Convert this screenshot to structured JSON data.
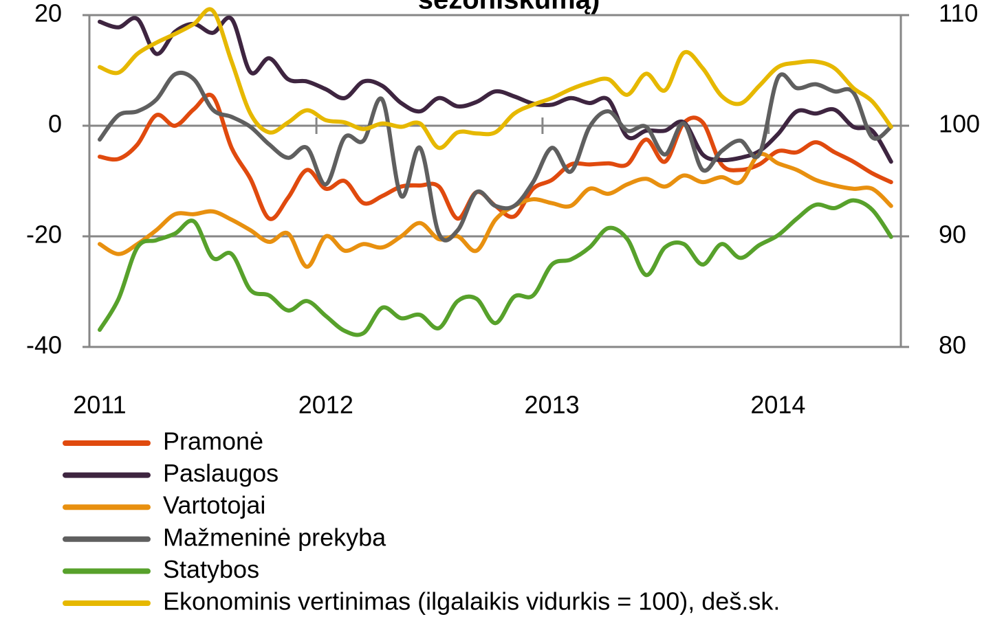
{
  "chart_data": {
    "type": "line",
    "title": "sezoniškumą)",
    "categories": [
      "2011",
      null,
      null,
      null,
      null,
      null,
      null,
      null,
      null,
      null,
      null,
      null,
      "2012",
      null,
      null,
      null,
      null,
      null,
      null,
      null,
      null,
      null,
      null,
      null,
      "2013",
      null,
      null,
      null,
      null,
      null,
      null,
      null,
      null,
      null,
      null,
      null,
      "2014",
      null,
      null,
      null,
      null,
      null,
      null
    ],
    "ylim": [
      -40,
      20
    ],
    "yticks": [
      -40,
      -20,
      0,
      20
    ],
    "y2lim": [
      80,
      110
    ],
    "y2ticks": [
      80,
      90,
      100,
      110
    ],
    "grid": true,
    "legend": "bottom",
    "series": [
      {
        "name": "Pramonė",
        "color": "#e04a0e",
        "values": [
          -5.6,
          -6,
          -3.4,
          1.9,
          0,
          3,
          5.3,
          -4,
          -9.6,
          -16.8,
          -13,
          -8,
          -11.4,
          -10,
          -14,
          -12.7,
          -11,
          -10.8,
          -11,
          -16.8,
          -12,
          -14.5,
          -16.4,
          -11.4,
          -9.8,
          -7,
          -7,
          -6.8,
          -7,
          -2.5,
          -6.5,
          0.5,
          0.6,
          -7,
          -8,
          -7,
          -4.6,
          -4.8,
          -3,
          -4.8,
          -6.5,
          -8.6,
          -10.2
        ]
      },
      {
        "name": "Paslaugos",
        "color": "#3e2540",
        "values": [
          18.8,
          17.8,
          19.3,
          13,
          17,
          18.4,
          16.8,
          19.3,
          9.7,
          12.2,
          8.4,
          8,
          6.6,
          5,
          8,
          7.2,
          4.1,
          2.6,
          5,
          3.5,
          4.3,
          6.2,
          5.3,
          4,
          3.8,
          5,
          4.1,
          4.7,
          -2,
          -0.9,
          -0.9,
          0.6,
          -5.2,
          -6.2,
          -5.8,
          -4.6,
          -1.5,
          2.6,
          2.2,
          2.9,
          -0.2,
          -0.9,
          -6.5
        ]
      },
      {
        "name": "Vartotojai",
        "color": "#e8900f",
        "values": [
          -21.4,
          -23.2,
          -21.4,
          -18.9,
          -16,
          -16,
          -15.5,
          -17,
          -18.9,
          -21,
          -19.5,
          -25.5,
          -20,
          -22.6,
          -21.4,
          -22,
          -20,
          -17.6,
          -20.5,
          -20,
          -22.6,
          -17,
          -14.5,
          -13.3,
          -14,
          -14.5,
          -11.4,
          -12.3,
          -10.6,
          -9.6,
          -11,
          -9,
          -10.2,
          -9.3,
          -10.2,
          -5.2,
          -6.8,
          -8,
          -9.8,
          -10.8,
          -11.4,
          -11.4,
          -14.5
        ]
      },
      {
        "name": "Mažmeninė prekyba",
        "color": "#5f5f5f",
        "values": [
          -2.5,
          1.9,
          2.6,
          4.7,
          9.3,
          8.4,
          2.9,
          1.6,
          -0.2,
          -3.4,
          -5.8,
          -4,
          -10.6,
          -2.1,
          -2.7,
          4.7,
          -12.7,
          -4,
          -19.5,
          -18.9,
          -12,
          -14.5,
          -14.5,
          -10.2,
          -4,
          -8.3,
          -0.2,
          2.6,
          -0.9,
          -0.2,
          -5.2,
          0.4,
          -8,
          -4.6,
          -2.7,
          -5.2,
          8.7,
          6.8,
          7.5,
          6.2,
          6,
          -2.1,
          -0.2
        ]
      },
      {
        "name": "Statybos",
        "color": "#57a12b",
        "values": [
          -36.9,
          -31.3,
          -22,
          -20.7,
          -19.5,
          -17.3,
          -23.9,
          -23.2,
          -29.7,
          -30.7,
          -33.4,
          -31.7,
          -34.4,
          -37.1,
          -37.5,
          -32.9,
          -34.8,
          -34.2,
          -36.6,
          -31.7,
          -31.3,
          -35.7,
          -30.9,
          -30.7,
          -25.1,
          -24.2,
          -22,
          -18.5,
          -20.5,
          -27,
          -22,
          -21.4,
          -25.1,
          -21.4,
          -23.9,
          -21.6,
          -19.8,
          -16.8,
          -14.3,
          -14.9,
          -13.5,
          -15.2,
          -20.1
        ]
      },
      {
        "name": "Ekonominis vertinimas (ilgalaikis vidurkis = 100), deš.sk.",
        "color": "#e6b800",
        "axis": "y2",
        "values": [
          105.3,
          104.8,
          106.5,
          107.5,
          108.3,
          109.2,
          110.4,
          105.8,
          101.1,
          99.4,
          100.3,
          101.4,
          100.5,
          100.3,
          99.7,
          100.2,
          99.9,
          100.2,
          98,
          99.4,
          99.3,
          99.4,
          101.1,
          101.9,
          102.5,
          103.3,
          103.9,
          104.2,
          102.8,
          104.7,
          103.2,
          106.6,
          105.2,
          102.7,
          102,
          103.6,
          105.3,
          105.7,
          105.8,
          105.2,
          103.4,
          102.2,
          99.9
        ]
      }
    ]
  }
}
